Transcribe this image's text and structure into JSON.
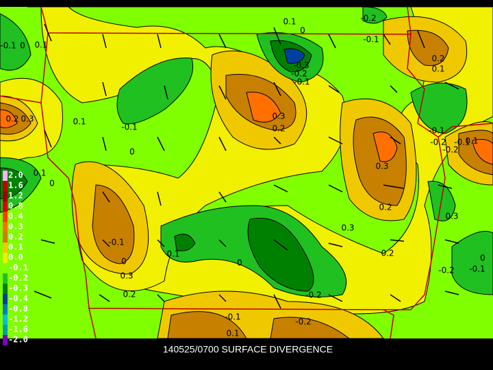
{
  "caption": "140525/0700 SURFACE DIVERGENCE",
  "legend": [
    {
      "label": "2.0",
      "color": "#ffb0ff"
    },
    {
      "label": "1.6",
      "color": "#c00000"
    },
    {
      "label": "1.2",
      "color": "#a00000"
    },
    {
      "label": "0.8",
      "color": "#e00000"
    },
    {
      "label": "0.4",
      "color": "#ff4000"
    },
    {
      "label": "0.3",
      "color": "#ff7000"
    },
    {
      "label": "0.2",
      "color": "#c88000"
    },
    {
      "label": "0.1",
      "color": "#f0c800"
    },
    {
      "label": "0.0",
      "color": "#f0f000"
    },
    {
      "label": "-0.1",
      "color": "#80ff00"
    },
    {
      "label": "-0.2",
      "color": "#20c020"
    },
    {
      "label": "-0.3",
      "color": "#008000"
    },
    {
      "label": "-0.4",
      "color": "#0040a0"
    },
    {
      "label": "-0.8",
      "color": "#0080c0"
    },
    {
      "label": "-1.2",
      "color": "#00c0e0"
    },
    {
      "label": "-1.6",
      "color": "#00a0a0"
    },
    {
      "label": "-2.0",
      "color": "#8000c0"
    }
  ],
  "contour_labels": [
    "0.1",
    "0",
    "-0.2",
    "-0.1",
    "-0.1",
    "0",
    "0.1",
    "-0.3",
    "-0.2",
    "-0.1",
    "0.2",
    "0.1",
    "0.1",
    "0.3",
    "0.2",
    "-0.1",
    "0",
    "0.3",
    "0.2",
    "0.3",
    "0.2",
    "0.1",
    "0",
    "-0.1",
    "0",
    "0.3",
    "0.2",
    "0.1",
    "0",
    "-0.2",
    "-0.1",
    "-0.2",
    "0.1",
    "0.3",
    "-0.2",
    "-0.1",
    "0",
    "-0.1",
    "-0.2",
    "-0.2",
    "-0.1",
    "0.1",
    "0.2",
    "0.3"
  ]
}
